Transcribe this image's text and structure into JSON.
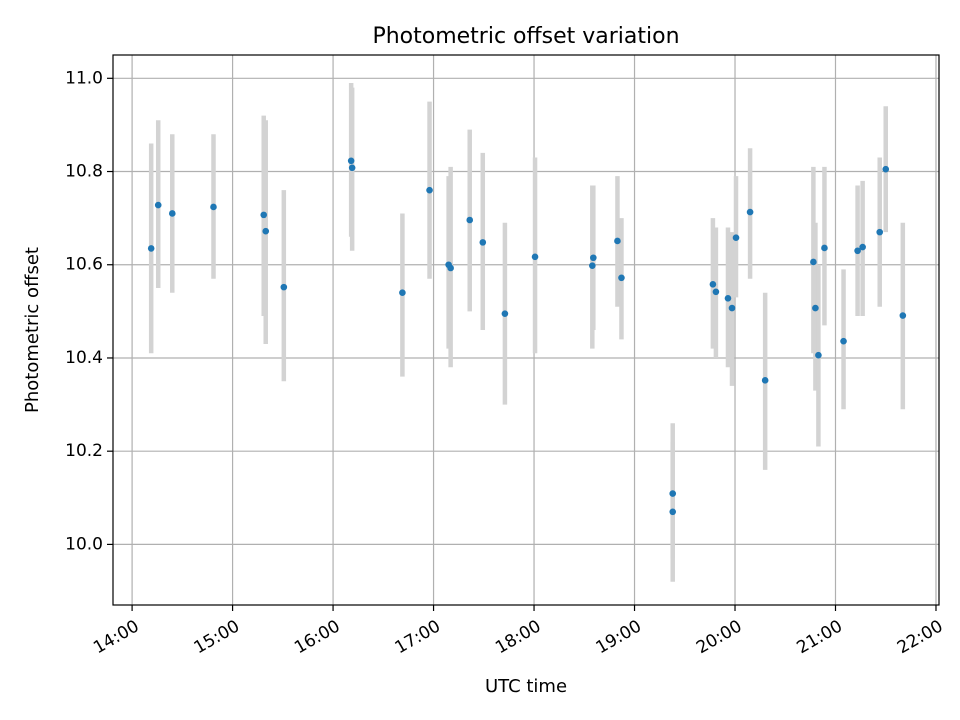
{
  "chart_data": {
    "type": "scatter",
    "title": "Photometric offset variation",
    "xlabel": "UTC time",
    "ylabel": "Photometric offset",
    "x_unit": "UTC hour",
    "xlim": [
      13.81,
      22.03
    ],
    "ylim": [
      9.87,
      11.05
    ],
    "grid": true,
    "x_ticks": [
      {
        "value": 14,
        "label": "14:00"
      },
      {
        "value": 15,
        "label": "15:00"
      },
      {
        "value": 16,
        "label": "16:00"
      },
      {
        "value": 17,
        "label": "17:00"
      },
      {
        "value": 18,
        "label": "18:00"
      },
      {
        "value": 19,
        "label": "19:00"
      },
      {
        "value": 20,
        "label": "20:00"
      },
      {
        "value": 21,
        "label": "21:00"
      },
      {
        "value": 22,
        "label": "22:00"
      }
    ],
    "y_ticks": [
      {
        "value": 10.0,
        "label": "10.0"
      },
      {
        "value": 10.2,
        "label": "10.2"
      },
      {
        "value": 10.4,
        "label": "10.4"
      },
      {
        "value": 10.6,
        "label": "10.6"
      },
      {
        "value": 10.8,
        "label": "10.8"
      },
      {
        "value": 11.0,
        "label": "11.0"
      }
    ],
    "colors": {
      "points": "#1f77b4",
      "error_bars": "#d3d3d3",
      "grid": "#b0b0b0"
    },
    "series": [
      {
        "points": [
          {
            "x": 14.19,
            "y": 10.635,
            "lo": 10.41,
            "hi": 10.86
          },
          {
            "x": 14.26,
            "y": 10.728,
            "lo": 10.55,
            "hi": 10.91
          },
          {
            "x": 14.4,
            "y": 10.71,
            "lo": 10.54,
            "hi": 10.88
          },
          {
            "x": 14.81,
            "y": 10.724,
            "lo": 10.57,
            "hi": 10.88
          },
          {
            "x": 15.31,
            "y": 10.707,
            "lo": 10.49,
            "hi": 10.92
          },
          {
            "x": 15.33,
            "y": 10.672,
            "lo": 10.43,
            "hi": 10.91
          },
          {
            "x": 15.51,
            "y": 10.552,
            "lo": 10.35,
            "hi": 10.76
          },
          {
            "x": 16.18,
            "y": 10.823,
            "lo": 10.66,
            "hi": 10.99
          },
          {
            "x": 16.19,
            "y": 10.808,
            "lo": 10.63,
            "hi": 10.98
          },
          {
            "x": 16.69,
            "y": 10.54,
            "lo": 10.36,
            "hi": 10.71
          },
          {
            "x": 16.96,
            "y": 10.76,
            "lo": 10.57,
            "hi": 10.95
          },
          {
            "x": 17.15,
            "y": 10.6,
            "lo": 10.42,
            "hi": 10.79
          },
          {
            "x": 17.17,
            "y": 10.593,
            "lo": 10.38,
            "hi": 10.81
          },
          {
            "x": 17.36,
            "y": 10.696,
            "lo": 10.5,
            "hi": 10.89
          },
          {
            "x": 17.49,
            "y": 10.648,
            "lo": 10.46,
            "hi": 10.84
          },
          {
            "x": 17.71,
            "y": 10.495,
            "lo": 10.3,
            "hi": 10.69
          },
          {
            "x": 18.01,
            "y": 10.617,
            "lo": 10.41,
            "hi": 10.83
          },
          {
            "x": 18.58,
            "y": 10.598,
            "lo": 10.42,
            "hi": 10.77
          },
          {
            "x": 18.59,
            "y": 10.615,
            "lo": 10.46,
            "hi": 10.77
          },
          {
            "x": 18.83,
            "y": 10.651,
            "lo": 10.51,
            "hi": 10.79
          },
          {
            "x": 18.87,
            "y": 10.572,
            "lo": 10.44,
            "hi": 10.7
          },
          {
            "x": 19.38,
            "y": 10.109,
            "lo": 9.97,
            "hi": 10.26
          },
          {
            "x": 19.38,
            "y": 10.07,
            "lo": 9.92,
            "hi": 10.22
          },
          {
            "x": 19.78,
            "y": 10.558,
            "lo": 10.42,
            "hi": 10.7
          },
          {
            "x": 19.81,
            "y": 10.542,
            "lo": 10.4,
            "hi": 10.68
          },
          {
            "x": 19.93,
            "y": 10.528,
            "lo": 10.38,
            "hi": 10.68
          },
          {
            "x": 19.97,
            "y": 10.507,
            "lo": 10.34,
            "hi": 10.67
          },
          {
            "x": 20.01,
            "y": 10.658,
            "lo": 10.53,
            "hi": 10.79
          },
          {
            "x": 20.15,
            "y": 10.713,
            "lo": 10.57,
            "hi": 10.85
          },
          {
            "x": 20.3,
            "y": 10.352,
            "lo": 10.16,
            "hi": 10.54
          },
          {
            "x": 20.78,
            "y": 10.606,
            "lo": 10.41,
            "hi": 10.81
          },
          {
            "x": 20.8,
            "y": 10.507,
            "lo": 10.33,
            "hi": 10.69
          },
          {
            "x": 20.83,
            "y": 10.406,
            "lo": 10.21,
            "hi": 10.6
          },
          {
            "x": 20.89,
            "y": 10.636,
            "lo": 10.47,
            "hi": 10.81
          },
          {
            "x": 21.08,
            "y": 10.436,
            "lo": 10.29,
            "hi": 10.59
          },
          {
            "x": 21.22,
            "y": 10.63,
            "lo": 10.49,
            "hi": 10.77
          },
          {
            "x": 21.27,
            "y": 10.638,
            "lo": 10.49,
            "hi": 10.78
          },
          {
            "x": 21.44,
            "y": 10.67,
            "lo": 10.51,
            "hi": 10.83
          },
          {
            "x": 21.5,
            "y": 10.805,
            "lo": 10.67,
            "hi": 10.94
          },
          {
            "x": 21.67,
            "y": 10.491,
            "lo": 10.29,
            "hi": 10.69
          }
        ]
      }
    ]
  }
}
